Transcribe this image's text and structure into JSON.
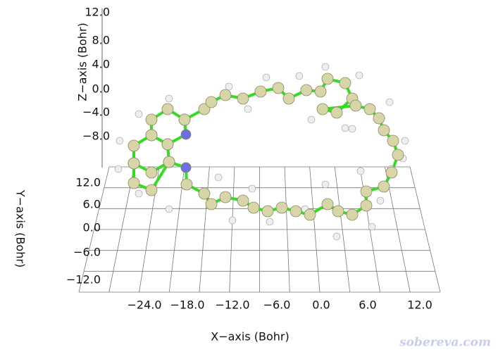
{
  "axes": {
    "z": {
      "title": "Z−axis (Bohr)",
      "ticks": [
        "12.0",
        "8.0",
        "4.0",
        "0.0",
        "−4.0",
        "−8.0"
      ]
    },
    "y": {
      "title": "Y−axis (Bohr)",
      "ticks": [
        "12.0",
        "6.0",
        "0.0",
        "−6.0",
        "−12.0"
      ]
    },
    "x": {
      "title": "X−axis (Bohr)",
      "ticks": [
        "−24.0",
        "−18.0",
        "−12.0",
        "−6.0",
        "0.0",
        "6.0",
        "12.0"
      ]
    }
  },
  "watermark": "sobereva.com"
}
